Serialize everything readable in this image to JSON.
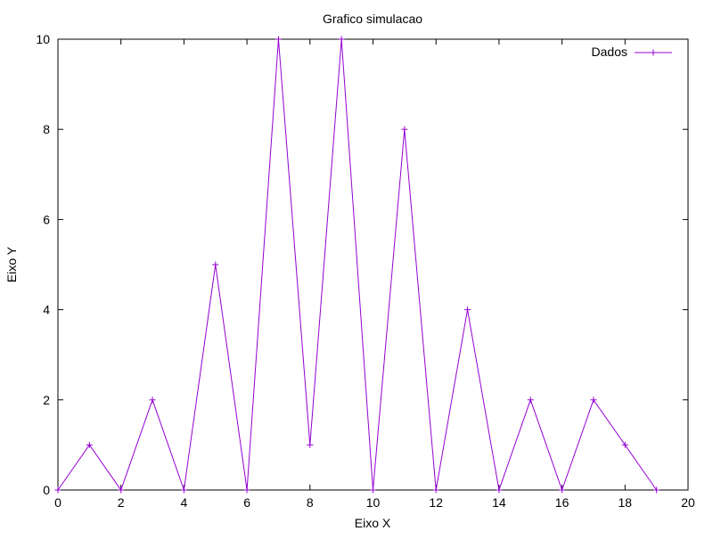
{
  "chart_data": {
    "type": "line",
    "title": "Grafico simulacao",
    "xlabel": "Eixo X",
    "ylabel": "Eixo Y",
    "xlim": [
      0,
      20
    ],
    "ylim": [
      0,
      10
    ],
    "xticks": [
      "0",
      "2",
      "4",
      "6",
      "8",
      "10",
      "12",
      "14",
      "16",
      "18",
      "20"
    ],
    "yticks": [
      "0",
      "2",
      "4",
      "6",
      "8",
      "10"
    ],
    "grid": false,
    "legend_position": "top-right",
    "series": [
      {
        "name": "Dados",
        "color": "#9400d3",
        "marker": "plus",
        "x": [
          0,
          1,
          2,
          3,
          4,
          5,
          6,
          7,
          8,
          9,
          10,
          11,
          12,
          13,
          14,
          15,
          16,
          17,
          18,
          19
        ],
        "y": [
          0,
          1,
          0,
          2,
          0,
          5,
          0,
          10,
          1,
          10,
          0,
          8,
          0,
          4,
          0,
          2,
          0,
          2,
          1,
          0
        ]
      }
    ]
  }
}
